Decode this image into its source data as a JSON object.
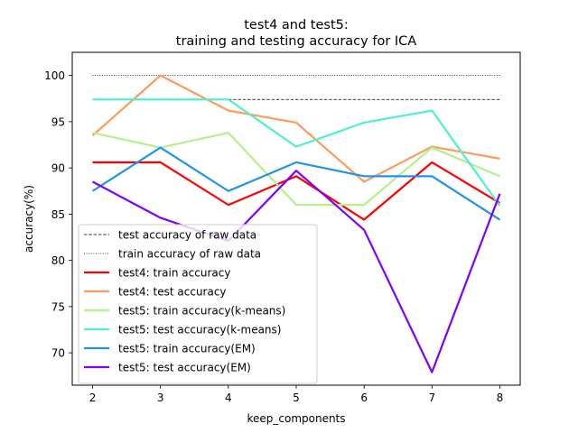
{
  "chart_data": {
    "type": "line",
    "title_line1": "test4 and test5:",
    "title_line2": "training and testing accuracy for ICA",
    "xlabel": "keep_components",
    "ylabel": "accuracy(%)",
    "x": [
      2,
      3,
      4,
      5,
      6,
      7,
      8
    ],
    "xlim": [
      1.7,
      8.3
    ],
    "ylim": [
      66.5,
      102.5
    ],
    "xticks": [
      2,
      3,
      4,
      5,
      6,
      7,
      8
    ],
    "yticks": [
      70,
      75,
      80,
      85,
      90,
      95,
      100
    ],
    "grid": false,
    "legend_placement": "lower-left",
    "reference_lines": [
      {
        "name": "test accuracy of raw data",
        "value": 97.4,
        "x_range": [
          4,
          8
        ],
        "style": "dashed",
        "color": "#000000"
      },
      {
        "name": "train accuracy of raw data",
        "value": 100.0,
        "x_range": [
          2,
          8
        ],
        "style": "dotted",
        "color": "#000000"
      }
    ],
    "series": [
      {
        "name": "test4: train accuracy",
        "color": "#ff0000",
        "values": [
          90.6,
          90.6,
          86.0,
          89.1,
          84.4,
          90.6,
          86.2
        ]
      },
      {
        "name": "test4: test accuracy",
        "color": "#ff9a5a",
        "values": [
          93.5,
          100.0,
          96.2,
          94.9,
          88.5,
          92.3,
          91.0
        ]
      },
      {
        "name": "test5: train accuracy(k-means)",
        "color": "#b5ef8e",
        "values": [
          93.8,
          92.2,
          93.8,
          86.0,
          86.0,
          92.2,
          89.1
        ]
      },
      {
        "name": "test5: test accuracy(k-means)",
        "color": "#4cf2cf",
        "values": [
          97.4,
          97.4,
          97.4,
          92.3,
          94.9,
          96.2,
          85.9
        ]
      },
      {
        "name": "test5: train accuracy(EM)",
        "color": "#2093e8",
        "values": [
          87.5,
          92.2,
          87.5,
          90.6,
          89.1,
          89.1,
          84.4
        ]
      },
      {
        "name": "test5: test accuracy(EM)",
        "color": "#7f00ff",
        "values": [
          88.5,
          84.6,
          82.1,
          89.7,
          83.3,
          67.9,
          87.2
        ]
      }
    ]
  }
}
